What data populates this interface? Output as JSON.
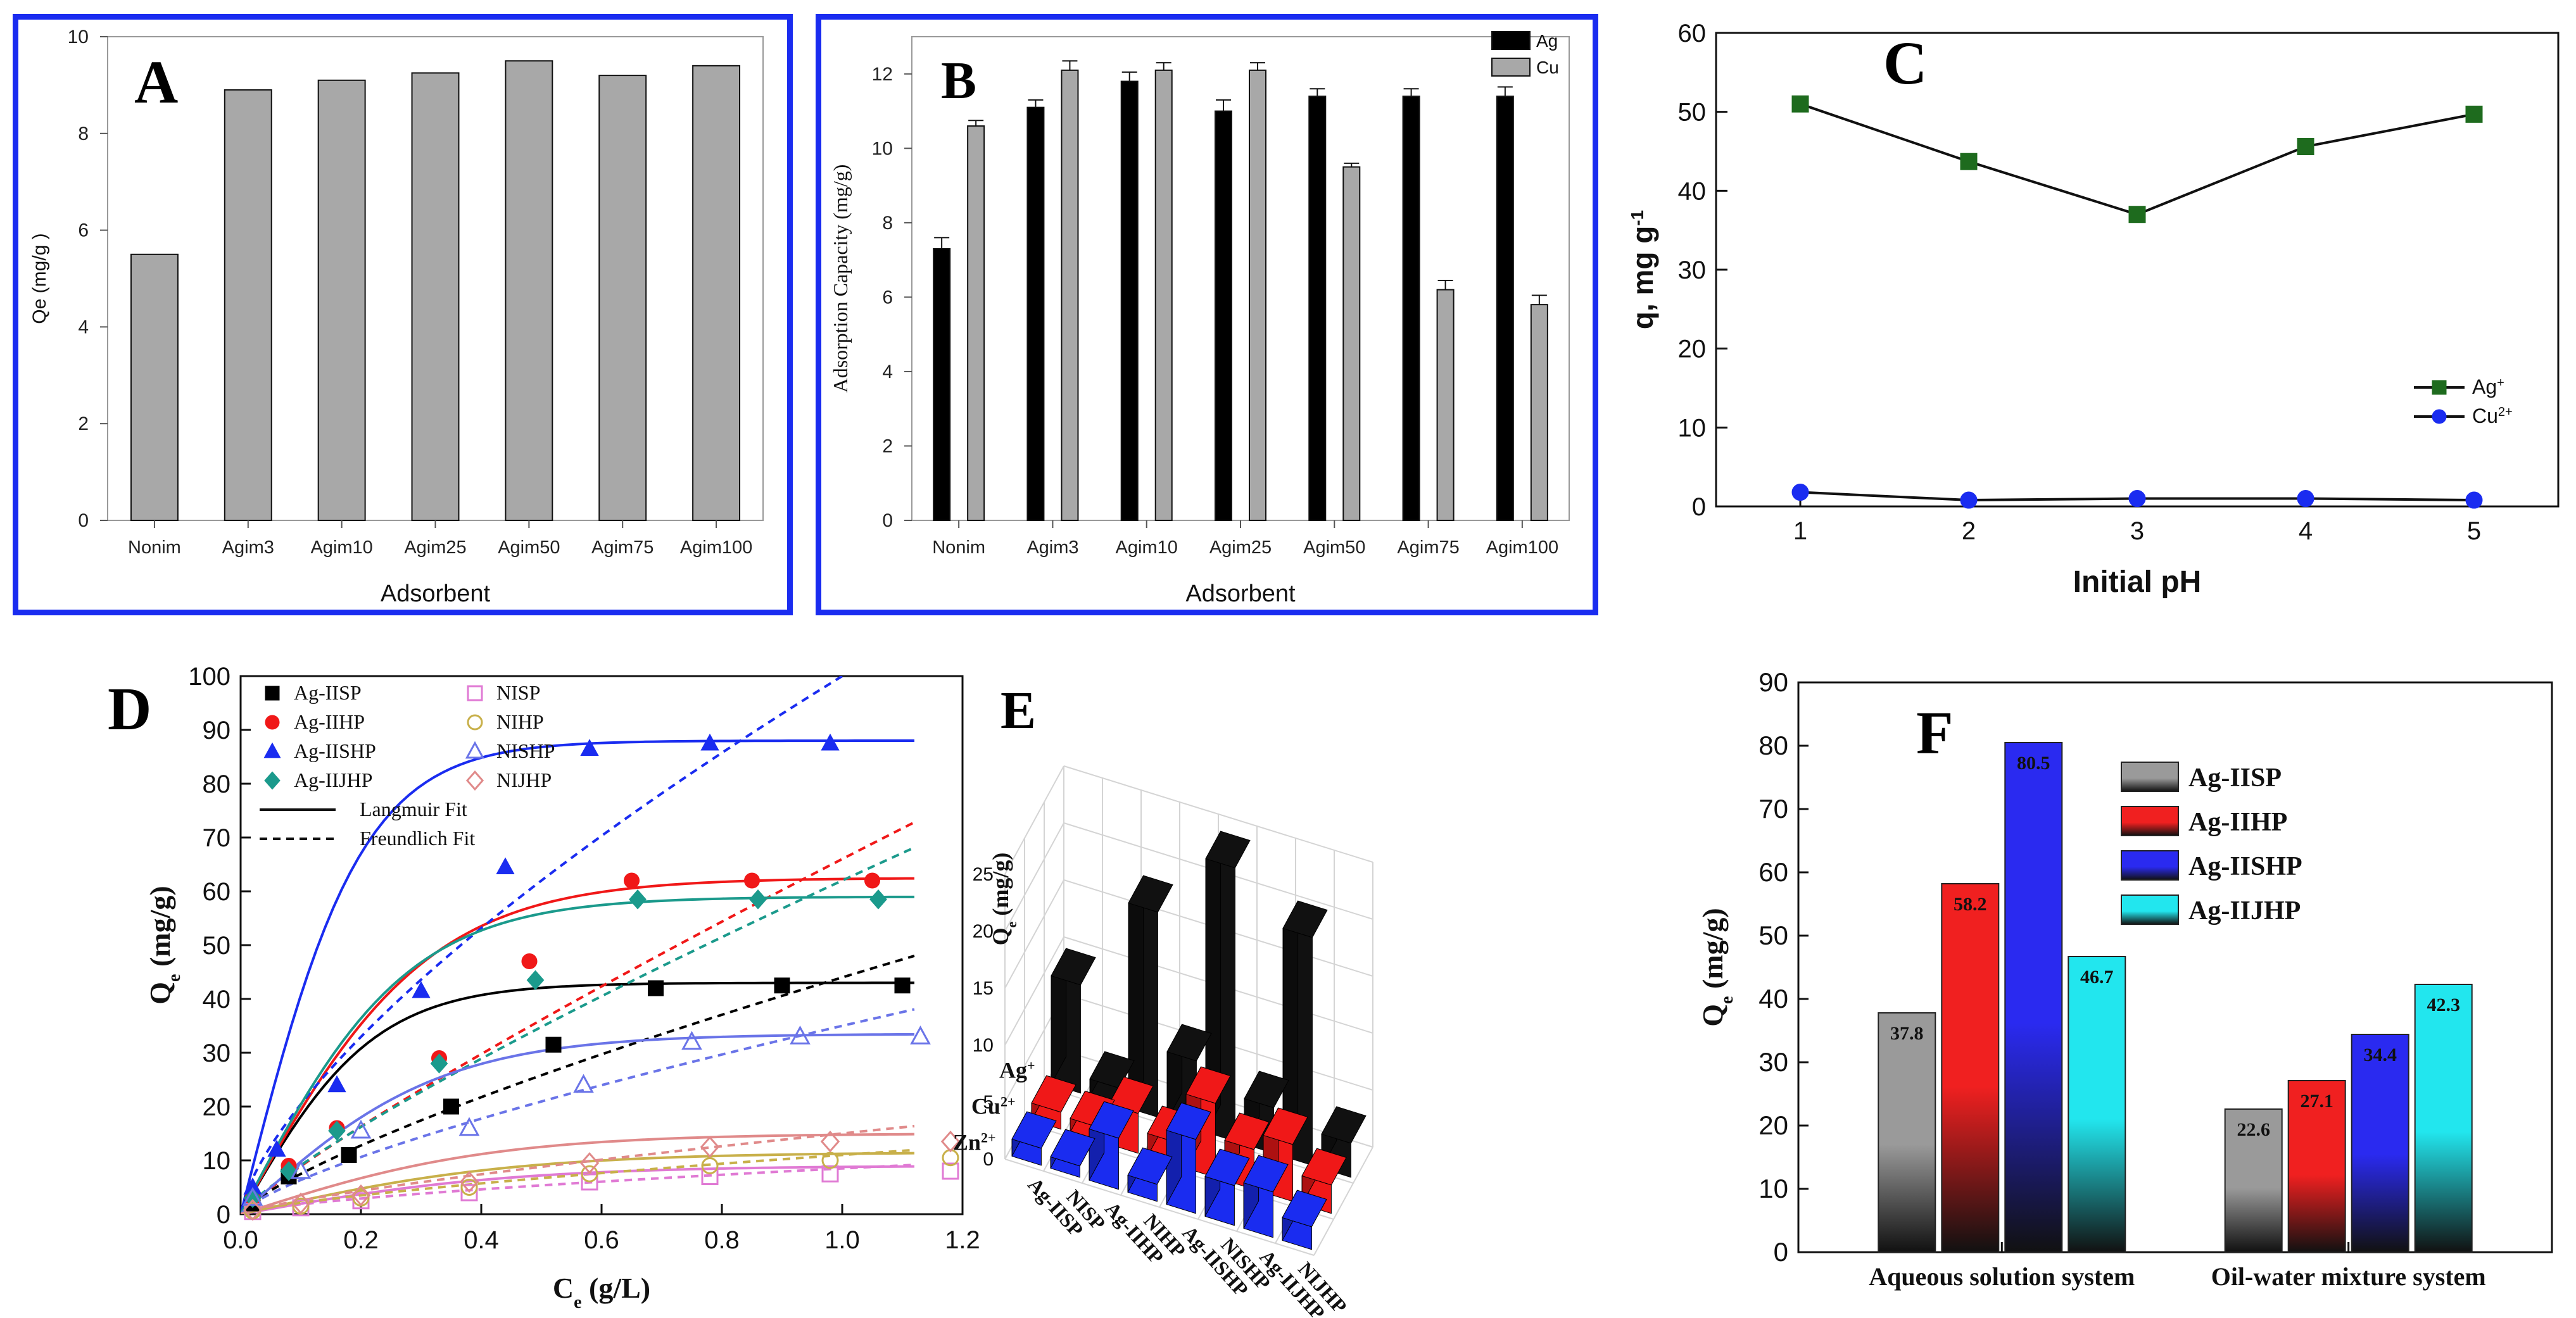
{
  "figure_label": "Adsorption results panels A–F",
  "chart_data": [
    {
      "panel": "A",
      "type": "bar",
      "panel_label": "A",
      "categories": [
        "Nonim",
        "Agim3",
        "Agim10",
        "Agim25",
        "Agim50",
        "Agim75",
        "Agim100"
      ],
      "values": [
        5.5,
        8.9,
        9.1,
        9.25,
        9.5,
        9.2,
        9.4
      ],
      "xlabel": "Adsorbent",
      "ylabel": "Qe (mg/g )",
      "ylim": [
        0,
        10
      ],
      "yticks": [
        "0",
        "2",
        "4",
        "6",
        "8",
        "10"
      ],
      "bar_color": "#a8a8a8"
    },
    {
      "panel": "B",
      "type": "bar",
      "panel_label": "B",
      "categories": [
        "Nonim",
        "Agim3",
        "Agim10",
        "Agim25",
        "Agim50",
        "Agim75",
        "Agim100"
      ],
      "series": [
        {
          "name": "Ag",
          "values": [
            7.3,
            11.1,
            11.8,
            11.0,
            11.4,
            11.4,
            11.4
          ],
          "errors": [
            0.3,
            0.2,
            0.25,
            0.3,
            0.2,
            0.2,
            0.25
          ],
          "color": "#000000"
        },
        {
          "name": "Cu",
          "values": [
            10.6,
            12.1,
            12.1,
            12.1,
            9.5,
            6.2,
            5.8
          ],
          "errors": [
            0.15,
            0.25,
            0.2,
            0.2,
            0.1,
            0.25,
            0.25
          ],
          "color": "#a8a8a8"
        }
      ],
      "xlabel": "Adsorbent",
      "ylabel": "Adsorption Capacity (mg/g)",
      "ylim": [
        0,
        13
      ],
      "yticks": [
        "0",
        "2",
        "4",
        "6",
        "8",
        "10",
        "12"
      ],
      "legend": "top-right"
    },
    {
      "panel": "C",
      "type": "line",
      "panel_label": "C",
      "x": [
        1,
        2,
        3,
        4,
        5
      ],
      "series": [
        {
          "name": "Ag",
          "sup": "+",
          "values": [
            51,
            43.7,
            37,
            45.6,
            49.7
          ],
          "color": "#1e6b1e",
          "marker": "square"
        },
        {
          "name": "Cu",
          "sup": "2+",
          "values": [
            1.8,
            0.8,
            1.0,
            1.0,
            0.8
          ],
          "color": "#1a2cf0",
          "marker": "circle"
        }
      ],
      "xlabel": "Initial pH",
      "ylabel": "q, mg g",
      "ylabel_sup": "-1",
      "xlim": [
        0.5,
        5.5
      ],
      "ylim": [
        0,
        60
      ],
      "xticks": [
        "1",
        "2",
        "3",
        "4",
        "5"
      ],
      "yticks": [
        "0",
        "10",
        "20",
        "30",
        "40",
        "50",
        "60"
      ],
      "legend": "right"
    },
    {
      "panel": "D",
      "type": "scatter",
      "panel_label": "D",
      "xlabel": "C",
      "xlabel_sub": "e",
      "xlabel_unit": " (g/L)",
      "ylabel": "Q",
      "ylabel_sub": "e",
      "ylabel_unit": " (mg/g)",
      "xlim": [
        0,
        1.2
      ],
      "ylim": [
        0,
        100
      ],
      "xticks": [
        "0.0",
        "0.2",
        "0.4",
        "0.6",
        "0.8",
        "1.0",
        "1.2"
      ],
      "yticks": [
        "0",
        "10",
        "20",
        "30",
        "40",
        "50",
        "60",
        "70",
        "80",
        "90",
        "100"
      ],
      "legend": "top-left",
      "fit_labels": [
        "Langmuir Fit",
        "Freundlich Fit"
      ],
      "series": [
        {
          "name": "Ag-IISP",
          "color": "#000000",
          "marker": "square",
          "filled": true,
          "x": [
            0.02,
            0.08,
            0.18,
            0.35,
            0.52,
            0.69,
            0.9,
            1.1
          ],
          "y": [
            2,
            7,
            11,
            20,
            31.5,
            42,
            42.5,
            42.5
          ],
          "qmax": 43,
          "k": 4.5,
          "kf": 44,
          "n": 1.3
        },
        {
          "name": "Ag-IIHP",
          "color": "#f01818",
          "marker": "circle",
          "filled": true,
          "x": [
            0.02,
            0.08,
            0.16,
            0.33,
            0.48,
            0.65,
            0.85,
            1.05
          ],
          "y": [
            3,
            9,
            16,
            29,
            47,
            62,
            62,
            62
          ],
          "qmax": 62.5,
          "k": 3.2,
          "kf": 66,
          "n": 1.15
        },
        {
          "name": "Ag-IISHP",
          "color": "#1a2cf0",
          "marker": "triangle",
          "filled": true,
          "x": [
            0.02,
            0.06,
            0.16,
            0.3,
            0.44,
            0.58,
            0.78,
            0.98
          ],
          "y": [
            5,
            12,
            24,
            41.5,
            64.5,
            86.5,
            87.5,
            87.5
          ],
          "qmax": 88,
          "k": 5.0,
          "kf": 100,
          "n": 1.45
        },
        {
          "name": "Ag-IIJHP",
          "color": "#1b9a8c",
          "marker": "diamond",
          "filled": true,
          "x": [
            0.02,
            0.08,
            0.16,
            0.33,
            0.49,
            0.66,
            0.86,
            1.06
          ],
          "y": [
            3,
            8,
            15.5,
            28,
            43.5,
            58.5,
            58.5,
            58.5
          ],
          "qmax": 59,
          "k": 3.6,
          "kf": 62,
          "n": 1.2
        },
        {
          "name": "NISP",
          "color": "#e07ad4",
          "marker": "square",
          "filled": false,
          "x": [
            0.02,
            0.1,
            0.2,
            0.38,
            0.58,
            0.78,
            0.98,
            1.18
          ],
          "y": [
            0.5,
            1.2,
            2.5,
            4,
            6,
            7,
            7.5,
            8
          ],
          "qmax": 9,
          "k": 2.2,
          "kf": 8.5,
          "n": 1.5
        },
        {
          "name": "NIHP",
          "color": "#c8b04a",
          "marker": "circle",
          "filled": false,
          "x": [
            0.02,
            0.1,
            0.2,
            0.38,
            0.58,
            0.78,
            0.98,
            1.18
          ],
          "y": [
            0.6,
            1.5,
            3,
            5,
            7.5,
            9,
            10,
            10.5
          ],
          "qmax": 11.5,
          "k": 2.2,
          "kf": 11,
          "n": 1.4
        },
        {
          "name": "NISHP",
          "color": "#6a74e8",
          "marker": "triangle",
          "filled": false,
          "x": [
            0.02,
            0.1,
            0.2,
            0.38,
            0.57,
            0.75,
            0.93,
            1.13
          ],
          "y": [
            3,
            8,
            15.5,
            16,
            24,
            32,
            33,
            33
          ],
          "qmax": 33.5,
          "k": 3.0,
          "kf": 35,
          "n": 1.35
        },
        {
          "name": "NIJHP",
          "color": "#e08a8a",
          "marker": "diamond",
          "filled": false,
          "x": [
            0.02,
            0.1,
            0.2,
            0.38,
            0.58,
            0.78,
            0.98,
            1.18
          ],
          "y": [
            0.8,
            2,
            3.5,
            6,
            9.5,
            12.5,
            13.5,
            13.5
          ],
          "qmax": 15,
          "k": 2.4,
          "kf": 15,
          "n": 1.3
        }
      ]
    },
    {
      "panel": "E",
      "type": "bar",
      "subtype": "3d-bar",
      "panel_label": "E",
      "zlabel": "Q",
      "zlabel_sub": "e",
      "zlabel_unit": " (mg/g)",
      "zlim": [
        0,
        25
      ],
      "zticks": [
        "0",
        "5",
        "10",
        "15",
        "20",
        "25"
      ],
      "ions": [
        "Ag",
        "Cu",
        "Zn"
      ],
      "ion_sups": [
        "+",
        "2+",
        "2+"
      ],
      "adsorbents": [
        "Ag-IISP",
        "NISP",
        "Ag-IIHP",
        "NIHP",
        "Ag-IISHP",
        "NISHP",
        "Ag-IIJHP",
        "NIJHP"
      ],
      "values": [
        [
          9.5,
          1.5,
          18,
          6,
          24,
          4,
          20,
          3
        ],
        [
          1.5,
          1.2,
          3.5,
          2.0,
          6.5,
          3.5,
          5.0,
          2.5
        ],
        [
          1.5,
          1.0,
          4.5,
          1.5,
          6.5,
          3.5,
          4.0,
          2.0
        ]
      ],
      "colors": [
        "#111111",
        "#f01818",
        "#1a2cf0"
      ]
    },
    {
      "panel": "F",
      "type": "bar",
      "panel_label": "F",
      "categories": [
        "Aqueous solution system",
        "Oil-water mixture system"
      ],
      "series": [
        {
          "name": "Ag-IISP",
          "values": [
            37.8,
            22.6
          ],
          "labels": [
            "37.8",
            "22.6"
          ],
          "color": "#9a9a9a"
        },
        {
          "name": "Ag-IIHP",
          "values": [
            58.2,
            27.1
          ],
          "labels": [
            "58.2",
            "27.1"
          ],
          "color": "#f02020"
        },
        {
          "name": "Ag-IISHP",
          "values": [
            80.5,
            34.4
          ],
          "labels": [
            "80.5",
            "34.4"
          ],
          "color": "#2a2af0"
        },
        {
          "name": "Ag-IIJHP",
          "values": [
            46.7,
            42.3
          ],
          "labels": [
            "46.7",
            "42.3"
          ],
          "color": "#22e6ee"
        }
      ],
      "ylabel": "Q",
      "ylabel_sub": "e",
      "ylabel_unit": " (mg/g)",
      "ylim": [
        0,
        90
      ],
      "yticks": [
        "0",
        "10",
        "20",
        "30",
        "40",
        "50",
        "60",
        "70",
        "80",
        "90"
      ],
      "legend": "top-right"
    }
  ]
}
